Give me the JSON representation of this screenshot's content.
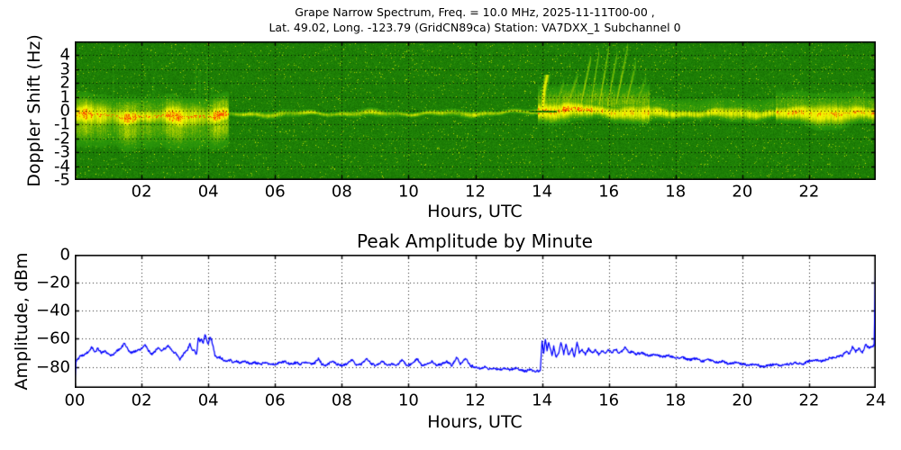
{
  "chart_data": [
    {
      "type": "heatmap",
      "name": "doppler-spectrogram",
      "title_lines": [
        "Grape Narrow Spectrum, Freq. = 10.0 MHz, 2025-11-11T00-00 ,",
        "Lat.  49.02, Long. -123.79 (GridCN89ca) Station: VA7DXX_1 Subchannel 0"
      ],
      "xlabel": "Hours, UTC",
      "ylabel": "Doppler Shift (Hz)",
      "xlim": [
        0,
        24
      ],
      "ylim": [
        -5,
        5
      ],
      "grid": "dotted",
      "xticks": [
        {
          "v": 2,
          "label": "02"
        },
        {
          "v": 4,
          "label": "04"
        },
        {
          "v": 6,
          "label": "06"
        },
        {
          "v": 8,
          "label": "08"
        },
        {
          "v": 10,
          "label": "10"
        },
        {
          "v": 12,
          "label": "12"
        },
        {
          "v": 14,
          "label": "14"
        },
        {
          "v": 16,
          "label": "16"
        },
        {
          "v": 18,
          "label": "18"
        },
        {
          "v": 20,
          "label": "20"
        },
        {
          "v": 22,
          "label": "22"
        }
      ],
      "yticks": [
        {
          "v": 4,
          "label": "4"
        },
        {
          "v": 3,
          "label": "3"
        },
        {
          "v": 2,
          "label": "2"
        },
        {
          "v": 1,
          "label": "1"
        },
        {
          "v": 0,
          "label": "0"
        },
        {
          "v": -1,
          "label": "-1"
        },
        {
          "v": -2,
          "label": "-2"
        },
        {
          "v": -3,
          "label": "-3"
        },
        {
          "v": -4,
          "label": "-4"
        },
        {
          "v": -5,
          "label": "-5"
        }
      ],
      "colormap": [
        {
          "u": 0.0,
          "c": [
            12,
            95,
            0
          ]
        },
        {
          "u": 0.45,
          "c": [
            42,
            150,
            10
          ]
        },
        {
          "u": 0.62,
          "c": [
            140,
            192,
            0
          ]
        },
        {
          "u": 0.8,
          "c": [
            232,
            240,
            0
          ]
        },
        {
          "u": 0.92,
          "c": [
            248,
            244,
            0
          ]
        },
        {
          "u": 0.96,
          "c": [
            240,
            140,
            0
          ]
        },
        {
          "u": 1.0,
          "c": [
            255,
            30,
            0
          ]
        }
      ],
      "band": {
        "center_hz": -0.3,
        "regions": [
          {
            "t0": 0,
            "t1": 4.6,
            "intensity": 1.0,
            "spread": 0.55,
            "redp": 0.3,
            "tails": [
              {
                "df": -0.9,
                "s": 0.7,
                "a": 0.5
              },
              {
                "df": 0.6,
                "s": 0.45,
                "a": 0.45
              }
            ]
          },
          {
            "t0": 4.6,
            "t1": 13.85,
            "intensity": 0.65,
            "spread": 0.13,
            "redp": 0,
            "tails": []
          },
          {
            "t0": 13.85,
            "t1": 15.5,
            "intensity": 0.95,
            "spread": 0.4,
            "redp": 0.28,
            "tails": [
              {
                "df": 0.7,
                "s": 0.55,
                "a": 0.4
              }
            ]
          },
          {
            "t0": 15.5,
            "t1": 17.2,
            "intensity": 0.9,
            "spread": 0.36,
            "redp": 0,
            "tails": [
              {
                "df": 0.8,
                "s": 0.6,
                "a": 0.45
              }
            ]
          },
          {
            "t0": 17.2,
            "t1": 21.0,
            "intensity": 0.72,
            "spread": 0.26,
            "redp": 0,
            "tails": [
              {
                "df": 0.4,
                "s": 0.4,
                "a": 0.3
              }
            ]
          },
          {
            "t0": 21.0,
            "t1": 24.01,
            "intensity": 0.9,
            "spread": 0.45,
            "redp": 0.09,
            "tails": [
              {
                "df": 0.5,
                "s": 0.55,
                "a": 0.35
              }
            ]
          }
        ],
        "hook": {
          "t": 14.02,
          "fmax": 2.6,
          "a": 0.95
        },
        "wisps": [
          {
            "ts": 14.4,
            "dur": 0.25,
            "fmax": 2.0,
            "a": 0.45
          },
          {
            "ts": 14.75,
            "dur": 0.3,
            "fmax": 2.4,
            "a": 0.5
          },
          {
            "ts": 15.15,
            "dur": 0.3,
            "fmax": 3.8,
            "a": 0.6
          },
          {
            "ts": 15.45,
            "dur": 0.25,
            "fmax": 4.3,
            "a": 0.55
          },
          {
            "ts": 15.7,
            "dur": 0.3,
            "fmax": 4.6,
            "a": 0.6
          },
          {
            "ts": 15.95,
            "dur": 0.3,
            "fmax": 4.2,
            "a": 0.55
          },
          {
            "ts": 16.2,
            "dur": 0.35,
            "fmax": 4.5,
            "a": 0.6
          },
          {
            "ts": 16.5,
            "dur": 0.3,
            "fmax": 3.4,
            "a": 0.5
          },
          {
            "ts": 16.8,
            "dur": 0.3,
            "fmax": 2.2,
            "a": 0.4
          }
        ],
        "streaks": [
          {
            "t": 1.15,
            "f0": -3,
            "f1": 3,
            "a": 0.12
          },
          {
            "t": 2.35,
            "f0": -3.5,
            "f1": 2.5,
            "a": 0.1
          },
          {
            "t": 3.6,
            "f0": -4,
            "f1": 3.5,
            "a": 0.14
          },
          {
            "t": 3.72,
            "f0": -4,
            "f1": 3,
            "a": 0.12
          },
          {
            "t": 3.95,
            "f0": -4.5,
            "f1": 4,
            "a": 0.15
          },
          {
            "t": 4.1,
            "f0": -3,
            "f1": 2,
            "a": 0.1
          },
          {
            "t": 9.3,
            "f0": -2,
            "f1": 2,
            "a": 0.08
          },
          {
            "t": 12.05,
            "f0": -1.5,
            "f1": 1.5,
            "a": 0.06
          },
          {
            "t": 14.3,
            "f0": -2,
            "f1": 2,
            "a": 0.08
          },
          {
            "t": 21.2,
            "f0": -2,
            "f1": 2,
            "a": 0.07
          }
        ]
      }
    },
    {
      "type": "line",
      "name": "peak-amplitude",
      "title": "Peak Amplitude by Minute",
      "xlabel": "Hours, UTC",
      "ylabel": "Amplitude, dBm",
      "xlim": [
        0,
        24
      ],
      "ylim": [
        -95,
        0
      ],
      "grid": "dotted",
      "line_color": "#0000ff",
      "noise_db": 0.8,
      "xticks": [
        {
          "v": 0,
          "label": "00"
        },
        {
          "v": 2,
          "label": "02"
        },
        {
          "v": 4,
          "label": "04"
        },
        {
          "v": 6,
          "label": "06"
        },
        {
          "v": 8,
          "label": "08"
        },
        {
          "v": 10,
          "label": "10"
        },
        {
          "v": 12,
          "label": "12"
        },
        {
          "v": 14,
          "label": "14"
        },
        {
          "v": 16,
          "label": "16"
        },
        {
          "v": 18,
          "label": "18"
        },
        {
          "v": 20,
          "label": "20"
        },
        {
          "v": 22,
          "label": "22"
        },
        {
          "v": 24,
          "label": "24"
        }
      ],
      "yticks": [
        {
          "v": 0,
          "label": "0"
        },
        {
          "v": -20,
          "label": "−20"
        },
        {
          "v": -40,
          "label": "−40"
        },
        {
          "v": -60,
          "label": "−60"
        },
        {
          "v": -80,
          "label": "−80"
        }
      ],
      "points": [
        [
          0.0,
          -93
        ],
        [
          0.03,
          -76
        ],
        [
          0.1,
          -74
        ],
        [
          0.2,
          -72
        ],
        [
          0.3,
          -71
        ],
        [
          0.42,
          -69
        ],
        [
          0.5,
          -66
        ],
        [
          0.6,
          -69
        ],
        [
          0.7,
          -67
        ],
        [
          0.8,
          -70
        ],
        [
          0.9,
          -69
        ],
        [
          1.0,
          -71
        ],
        [
          1.1,
          -72
        ],
        [
          1.2,
          -70
        ],
        [
          1.3,
          -68
        ],
        [
          1.4,
          -66
        ],
        [
          1.5,
          -63
        ],
        [
          1.6,
          -68
        ],
        [
          1.7,
          -70
        ],
        [
          1.8,
          -69
        ],
        [
          1.9,
          -68
        ],
        [
          2.0,
          -67
        ],
        [
          2.1,
          -64
        ],
        [
          2.2,
          -68
        ],
        [
          2.3,
          -71
        ],
        [
          2.4,
          -69
        ],
        [
          2.5,
          -66
        ],
        [
          2.6,
          -68
        ],
        [
          2.7,
          -67
        ],
        [
          2.8,
          -65
        ],
        [
          2.9,
          -68
        ],
        [
          3.0,
          -70
        ],
        [
          3.1,
          -72
        ],
        [
          3.15,
          -75
        ],
        [
          3.25,
          -71
        ],
        [
          3.35,
          -69
        ],
        [
          3.45,
          -64
        ],
        [
          3.5,
          -67
        ],
        [
          3.6,
          -69
        ],
        [
          3.65,
          -71
        ],
        [
          3.7,
          -59
        ],
        [
          3.75,
          -62
        ],
        [
          3.8,
          -60
        ],
        [
          3.85,
          -63
        ],
        [
          3.9,
          -57
        ],
        [
          3.95,
          -60
        ],
        [
          4.0,
          -64
        ],
        [
          4.05,
          -59
        ],
        [
          4.1,
          -61
        ],
        [
          4.15,
          -66
        ],
        [
          4.2,
          -72
        ],
        [
          4.28,
          -74
        ],
        [
          4.35,
          -73
        ],
        [
          4.45,
          -75
        ],
        [
          4.55,
          -76
        ],
        [
          4.65,
          -75
        ],
        [
          4.75,
          -77
        ],
        [
          4.85,
          -76
        ],
        [
          4.95,
          -77
        ],
        [
          5.1,
          -76
        ],
        [
          5.25,
          -78
        ],
        [
          5.4,
          -77
        ],
        [
          5.55,
          -78
        ],
        [
          5.7,
          -77
        ],
        [
          5.85,
          -78
        ],
        [
          6.0,
          -78
        ],
        [
          6.15,
          -77
        ],
        [
          6.3,
          -76
        ],
        [
          6.45,
          -78
        ],
        [
          6.6,
          -77
        ],
        [
          6.75,
          -78
        ],
        [
          6.9,
          -77
        ],
        [
          7.05,
          -78
        ],
        [
          7.2,
          -77
        ],
        [
          7.3,
          -74
        ],
        [
          7.4,
          -78
        ],
        [
          7.55,
          -79
        ],
        [
          7.7,
          -76
        ],
        [
          7.85,
          -78
        ],
        [
          8.0,
          -79
        ],
        [
          8.15,
          -78
        ],
        [
          8.3,
          -75
        ],
        [
          8.45,
          -79
        ],
        [
          8.6,
          -78
        ],
        [
          8.75,
          -74
        ],
        [
          8.9,
          -78
        ],
        [
          9.05,
          -79
        ],
        [
          9.2,
          -76
        ],
        [
          9.35,
          -79
        ],
        [
          9.5,
          -78
        ],
        [
          9.65,
          -79
        ],
        [
          9.8,
          -75
        ],
        [
          9.95,
          -79
        ],
        [
          10.1,
          -78
        ],
        [
          10.25,
          -74
        ],
        [
          10.4,
          -79
        ],
        [
          10.55,
          -78
        ],
        [
          10.7,
          -76
        ],
        [
          10.85,
          -79
        ],
        [
          11.0,
          -78
        ],
        [
          11.15,
          -76
        ],
        [
          11.3,
          -79
        ],
        [
          11.45,
          -73
        ],
        [
          11.55,
          -78
        ],
        [
          11.7,
          -74
        ],
        [
          11.85,
          -79
        ],
        [
          12.0,
          -80
        ],
        [
          12.15,
          -81
        ],
        [
          12.3,
          -80
        ],
        [
          12.45,
          -82
        ],
        [
          12.6,
          -81
        ],
        [
          12.75,
          -82
        ],
        [
          12.9,
          -81
        ],
        [
          13.05,
          -82
        ],
        [
          13.2,
          -81
        ],
        [
          13.35,
          -82
        ],
        [
          13.5,
          -83
        ],
        [
          13.65,
          -82
        ],
        [
          13.8,
          -83
        ],
        [
          13.95,
          -83
        ],
        [
          14.0,
          -62
        ],
        [
          14.05,
          -70
        ],
        [
          14.1,
          -60
        ],
        [
          14.15,
          -68
        ],
        [
          14.2,
          -63
        ],
        [
          14.3,
          -72
        ],
        [
          14.35,
          -65
        ],
        [
          14.42,
          -73
        ],
        [
          14.5,
          -70
        ],
        [
          14.57,
          -62
        ],
        [
          14.65,
          -71
        ],
        [
          14.72,
          -64
        ],
        [
          14.8,
          -72
        ],
        [
          14.9,
          -67
        ],
        [
          14.97,
          -73
        ],
        [
          15.05,
          -62
        ],
        [
          15.12,
          -70
        ],
        [
          15.2,
          -68
        ],
        [
          15.3,
          -71
        ],
        [
          15.4,
          -67
        ],
        [
          15.5,
          -70
        ],
        [
          15.6,
          -68
        ],
        [
          15.7,
          -71
        ],
        [
          15.8,
          -69
        ],
        [
          15.9,
          -70
        ],
        [
          16.0,
          -68
        ],
        [
          16.1,
          -70
        ],
        [
          16.2,
          -67
        ],
        [
          16.3,
          -70
        ],
        [
          16.4,
          -69
        ],
        [
          16.5,
          -66
        ],
        [
          16.6,
          -70
        ],
        [
          16.7,
          -69
        ],
        [
          16.8,
          -71
        ],
        [
          17.0,
          -70
        ],
        [
          17.2,
          -72
        ],
        [
          17.4,
          -71
        ],
        [
          17.6,
          -73
        ],
        [
          17.8,
          -72
        ],
        [
          18.0,
          -74
        ],
        [
          18.2,
          -73
        ],
        [
          18.4,
          -75
        ],
        [
          18.6,
          -74
        ],
        [
          18.8,
          -76
        ],
        [
          19.0,
          -75
        ],
        [
          19.2,
          -77
        ],
        [
          19.4,
          -76
        ],
        [
          19.6,
          -78
        ],
        [
          19.8,
          -77
        ],
        [
          20.0,
          -78
        ],
        [
          20.2,
          -79
        ],
        [
          20.4,
          -78
        ],
        [
          20.6,
          -80
        ],
        [
          20.8,
          -79
        ],
        [
          21.0,
          -78
        ],
        [
          21.2,
          -79
        ],
        [
          21.4,
          -78
        ],
        [
          21.6,
          -77
        ],
        [
          21.8,
          -78
        ],
        [
          22.0,
          -76
        ],
        [
          22.2,
          -75
        ],
        [
          22.4,
          -76
        ],
        [
          22.6,
          -74
        ],
        [
          22.8,
          -73
        ],
        [
          23.0,
          -72
        ],
        [
          23.1,
          -69
        ],
        [
          23.2,
          -71
        ],
        [
          23.3,
          -66
        ],
        [
          23.4,
          -69
        ],
        [
          23.5,
          -67
        ],
        [
          23.6,
          -70
        ],
        [
          23.7,
          -64
        ],
        [
          23.8,
          -67
        ],
        [
          23.85,
          -65
        ],
        [
          23.9,
          -66
        ],
        [
          23.95,
          -64
        ],
        [
          24.0,
          0
        ]
      ]
    }
  ]
}
